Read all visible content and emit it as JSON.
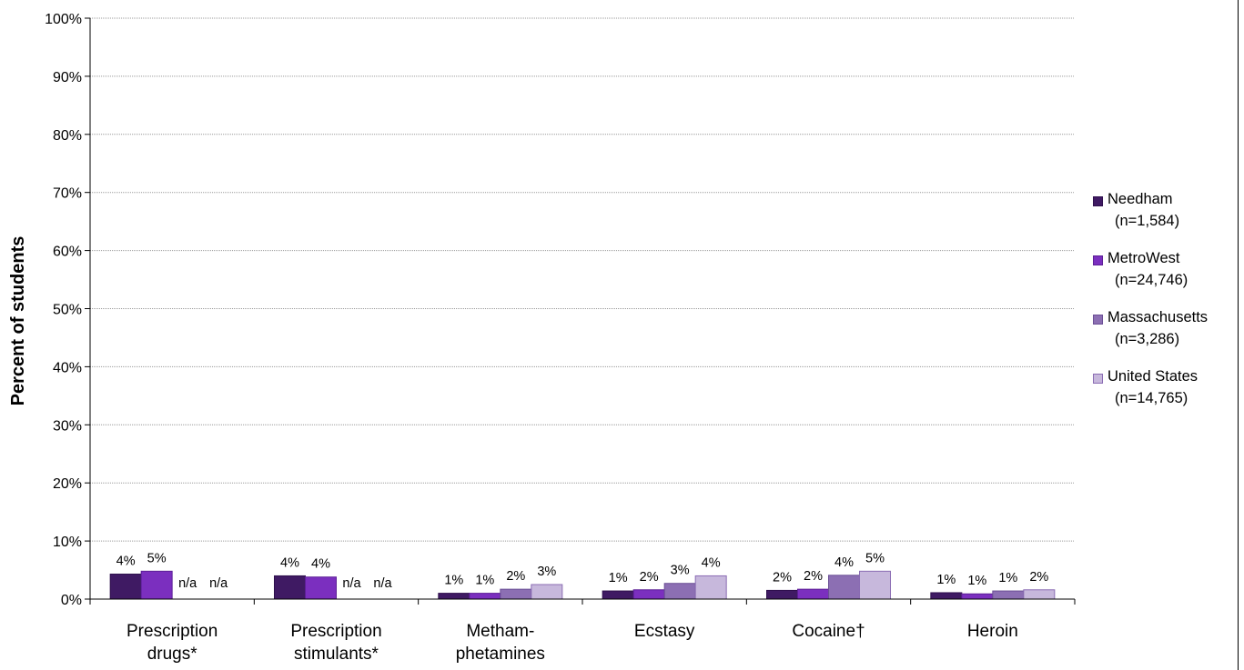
{
  "chart_data": {
    "type": "bar",
    "title": "",
    "xlabel": "",
    "ylabel": "Percent of students",
    "ylim": [
      0,
      100
    ],
    "yticks": [
      "0%",
      "10%",
      "20%",
      "30%",
      "40%",
      "50%",
      "60%",
      "70%",
      "80%",
      "90%",
      "100%"
    ],
    "grid": true,
    "legend_position": "right",
    "categories": [
      [
        "Prescription",
        "drugs*"
      ],
      [
        "Prescription",
        "stimulants*"
      ],
      [
        "Metham-",
        "phetamines"
      ],
      [
        "Ecstasy"
      ],
      [
        "Cocaine†"
      ],
      [
        "Heroin"
      ]
    ],
    "series": [
      {
        "name": "Needham",
        "n": "(n=1,584)",
        "color": "#3f1a63",
        "border": "#2e0f4c",
        "values": [
          4.3,
          4.0,
          1.0,
          1.4,
          1.5,
          1.1
        ],
        "labels": [
          "4%",
          "4%",
          "1%",
          "1%",
          "2%",
          "1%"
        ]
      },
      {
        "name": "MetroWest",
        "n": "(n=24,746)",
        "color": "#7b2fbf",
        "border": "#5c1f96",
        "values": [
          4.8,
          3.8,
          1.0,
          1.6,
          1.7,
          0.9
        ],
        "labels": [
          "5%",
          "4%",
          "1%",
          "2%",
          "2%",
          "1%"
        ]
      },
      {
        "name": "Massachusetts",
        "n": "(n=3,286)",
        "color": "#8c6fb3",
        "border": "#6a4e94",
        "values": [
          null,
          null,
          1.7,
          2.7,
          4.1,
          1.4
        ],
        "labels": [
          "n/a",
          "n/a",
          "2%",
          "3%",
          "4%",
          "1%"
        ]
      },
      {
        "name": "United States",
        "n": "(n=14,765)",
        "color": "#c7b8dc",
        "border": "#8a6cb3",
        "values": [
          null,
          null,
          2.5,
          4.0,
          4.8,
          1.6
        ],
        "labels": [
          "n/a",
          "n/a",
          "3%",
          "4%",
          "5%",
          "2%"
        ]
      }
    ]
  }
}
